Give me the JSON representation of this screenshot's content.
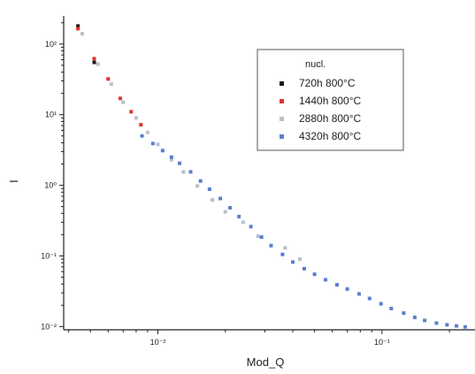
{
  "chart_data": {
    "type": "scatter",
    "xlabel": "Mod_Q",
    "ylabel": "I",
    "x_scale": "log",
    "y_scale": "log",
    "xlim": [
      0.0038,
      0.26
    ],
    "ylim": [
      0.009,
      250
    ],
    "x_ticks": [
      {
        "value": 0.01,
        "label": "10⁻²"
      },
      {
        "value": 0.1,
        "label": "10⁻¹"
      }
    ],
    "y_ticks": [
      {
        "value": 100,
        "label": "10²"
      },
      {
        "value": 10,
        "label": "10¹"
      },
      {
        "value": 1,
        "label": "10⁰"
      },
      {
        "value": 0.1,
        "label": "10⁻¹"
      },
      {
        "value": 0.01,
        "label": "10⁻²"
      }
    ],
    "legend": {
      "title": "nucl.",
      "position": "top-right"
    },
    "grid": false,
    "series": [
      {
        "name": "720h  800°C",
        "color": "#1a1a1a",
        "x": [
          0.0044,
          0.0052
        ],
        "y": [
          180,
          55
        ]
      },
      {
        "name": "1440h  800°C",
        "color": "#e0322f",
        "x": [
          0.0044,
          0.0052,
          0.006,
          0.0068,
          0.0076,
          0.0084
        ],
        "y": [
          165,
          62,
          32,
          17,
          11,
          7.2
        ]
      },
      {
        "name": "2880h 800°C",
        "color": "#b8c0cc",
        "x": [
          0.0046,
          0.0054,
          0.0062,
          0.007,
          0.008,
          0.009,
          0.01,
          0.0115,
          0.013,
          0.015,
          0.0175,
          0.02,
          0.024,
          0.028,
          0.032,
          0.037,
          0.043
        ],
        "y": [
          140,
          52,
          27,
          15,
          9.0,
          5.6,
          3.8,
          2.3,
          1.55,
          0.98,
          0.62,
          0.42,
          0.3,
          0.19,
          0.14,
          0.13,
          0.09
        ]
      },
      {
        "name": "4320h 800°C",
        "color": "#5b7fd0",
        "x": [
          0.0085,
          0.0095,
          0.0105,
          0.0115,
          0.0125,
          0.014,
          0.0155,
          0.017,
          0.019,
          0.021,
          0.023,
          0.026,
          0.029,
          0.032,
          0.036,
          0.04,
          0.045,
          0.05,
          0.056,
          0.063,
          0.07,
          0.079,
          0.088,
          0.099,
          0.11,
          0.125,
          0.14,
          0.155,
          0.175,
          0.195,
          0.215,
          0.235
        ],
        "y": [
          5.0,
          3.9,
          3.1,
          2.5,
          2.05,
          1.55,
          1.15,
          0.88,
          0.65,
          0.48,
          0.36,
          0.26,
          0.185,
          0.14,
          0.105,
          0.082,
          0.066,
          0.055,
          0.046,
          0.039,
          0.034,
          0.029,
          0.025,
          0.021,
          0.018,
          0.0155,
          0.0135,
          0.0122,
          0.0112,
          0.0106,
          0.0102,
          0.0099
        ]
      }
    ]
  }
}
